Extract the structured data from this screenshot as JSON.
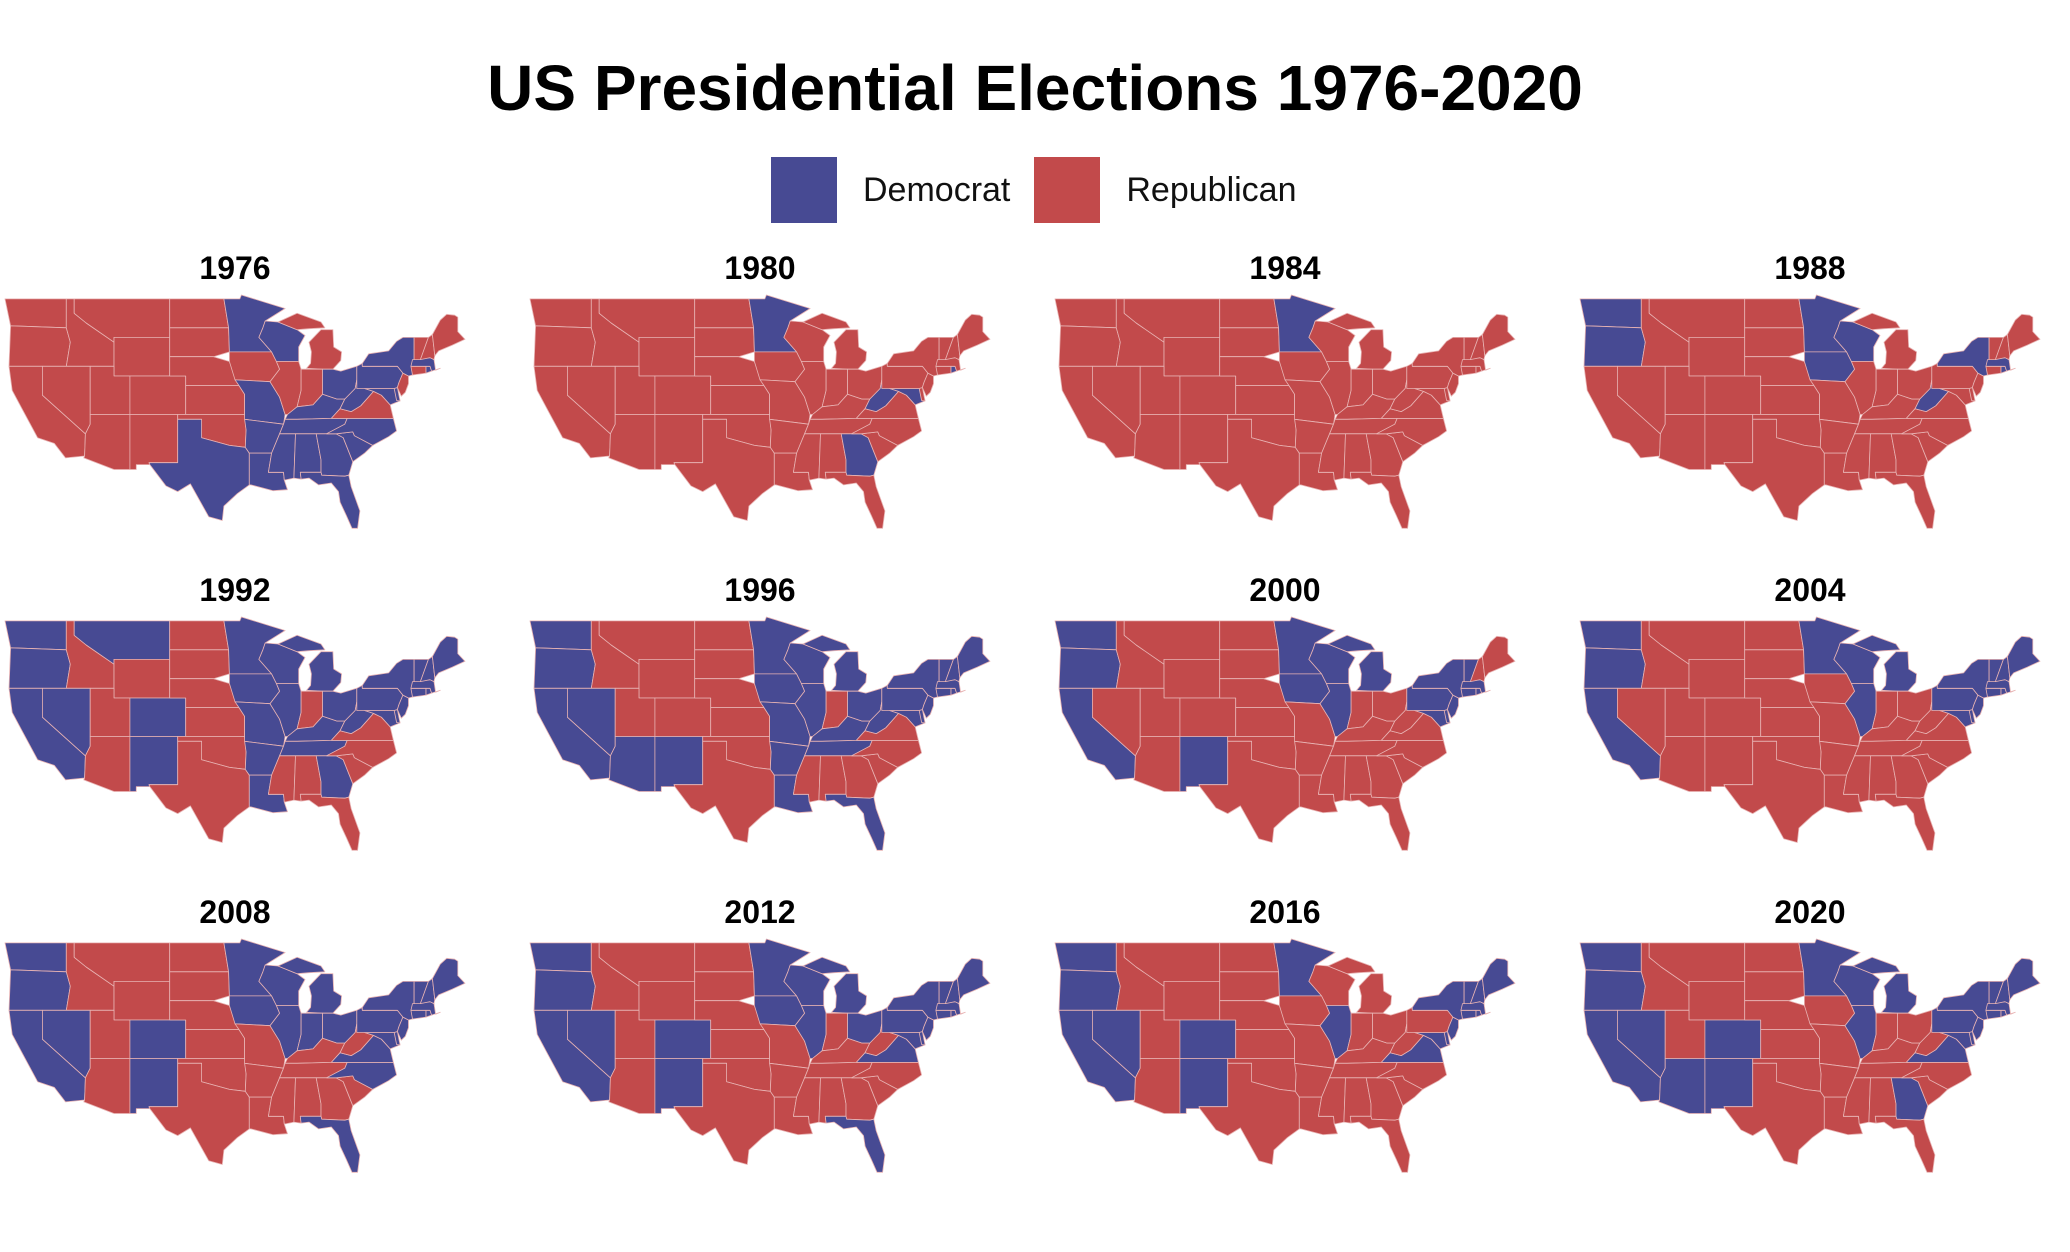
{
  "title": "US Presidential Elections 1976-2020",
  "colors": {
    "Democrat": "#474a93",
    "Republican": "#c24a4b",
    "border": "#e8b3b3"
  },
  "legend": [
    {
      "party": "Democrat",
      "label": "Democrat"
    },
    {
      "party": "Republican",
      "label": "Republican"
    }
  ],
  "elections": [
    {
      "year": "1976",
      "dem": [
        "MN",
        "WI",
        "TX",
        "LA",
        "AR",
        "MO",
        "TN",
        "KY",
        "MS",
        "AL",
        "GA",
        "FL",
        "SC",
        "NC",
        "WV",
        "OH",
        "PA",
        "NY",
        "MD",
        "DE",
        "MA",
        "RI",
        "DC"
      ]
    },
    {
      "year": "1980",
      "dem": [
        "MN",
        "GA",
        "WV",
        "MD",
        "RI",
        "DC"
      ]
    },
    {
      "year": "1984",
      "dem": [
        "MN",
        "DC"
      ]
    },
    {
      "year": "1988",
      "dem": [
        "WA",
        "OR",
        "MN",
        "WI",
        "IA",
        "NY",
        "WV",
        "MA",
        "RI",
        "DC"
      ]
    },
    {
      "year": "1992",
      "dem": [
        "WA",
        "OR",
        "CA",
        "NV",
        "MT",
        "CO",
        "NM",
        "MN",
        "IA",
        "MO",
        "IL",
        "WI",
        "MI",
        "OH",
        "PA",
        "NY",
        "NJ",
        "VT",
        "NH",
        "ME",
        "MA",
        "RI",
        "CT",
        "DE",
        "MD",
        "WV",
        "KY",
        "TN",
        "AR",
        "LA",
        "GA",
        "DC"
      ]
    },
    {
      "year": "1996",
      "dem": [
        "WA",
        "OR",
        "CA",
        "NV",
        "AZ",
        "NM",
        "MN",
        "IA",
        "MO",
        "IL",
        "WI",
        "MI",
        "OH",
        "PA",
        "NY",
        "NJ",
        "VT",
        "NH",
        "ME",
        "MA",
        "RI",
        "CT",
        "DE",
        "MD",
        "WV",
        "KY",
        "TN",
        "AR",
        "LA",
        "FL",
        "DC"
      ]
    },
    {
      "year": "2000",
      "dem": [
        "WA",
        "OR",
        "CA",
        "NM",
        "MN",
        "IA",
        "WI",
        "IL",
        "MI",
        "PA",
        "NY",
        "NJ",
        "VT",
        "MA",
        "RI",
        "CT",
        "DE",
        "MD",
        "DC"
      ]
    },
    {
      "year": "2004",
      "dem": [
        "WA",
        "OR",
        "CA",
        "MN",
        "WI",
        "IL",
        "MI",
        "PA",
        "NY",
        "NJ",
        "VT",
        "NH",
        "ME",
        "MA",
        "RI",
        "CT",
        "DE",
        "MD",
        "DC"
      ]
    },
    {
      "year": "2008",
      "dem": [
        "WA",
        "OR",
        "CA",
        "NV",
        "CO",
        "NM",
        "MN",
        "IA",
        "WI",
        "IL",
        "MI",
        "IN",
        "OH",
        "PA",
        "NY",
        "NJ",
        "VT",
        "NH",
        "ME",
        "MA",
        "RI",
        "CT",
        "DE",
        "MD",
        "VA",
        "NC",
        "FL",
        "DC"
      ]
    },
    {
      "year": "2012",
      "dem": [
        "WA",
        "OR",
        "CA",
        "NV",
        "CO",
        "NM",
        "MN",
        "IA",
        "WI",
        "IL",
        "MI",
        "OH",
        "PA",
        "NY",
        "NJ",
        "VT",
        "NH",
        "ME",
        "MA",
        "RI",
        "CT",
        "DE",
        "MD",
        "VA",
        "FL",
        "DC"
      ]
    },
    {
      "year": "2016",
      "dem": [
        "WA",
        "OR",
        "CA",
        "NV",
        "CO",
        "NM",
        "MN",
        "IL",
        "VA",
        "NY",
        "NJ",
        "VT",
        "NH",
        "ME",
        "MA",
        "RI",
        "CT",
        "DE",
        "MD",
        "DC"
      ]
    },
    {
      "year": "2020",
      "dem": [
        "WA",
        "OR",
        "CA",
        "NV",
        "AZ",
        "CO",
        "NM",
        "MN",
        "WI",
        "IL",
        "MI",
        "PA",
        "VA",
        "GA",
        "NY",
        "NJ",
        "VT",
        "NH",
        "ME",
        "MA",
        "RI",
        "CT",
        "DE",
        "MD",
        "DC"
      ]
    }
  ]
}
